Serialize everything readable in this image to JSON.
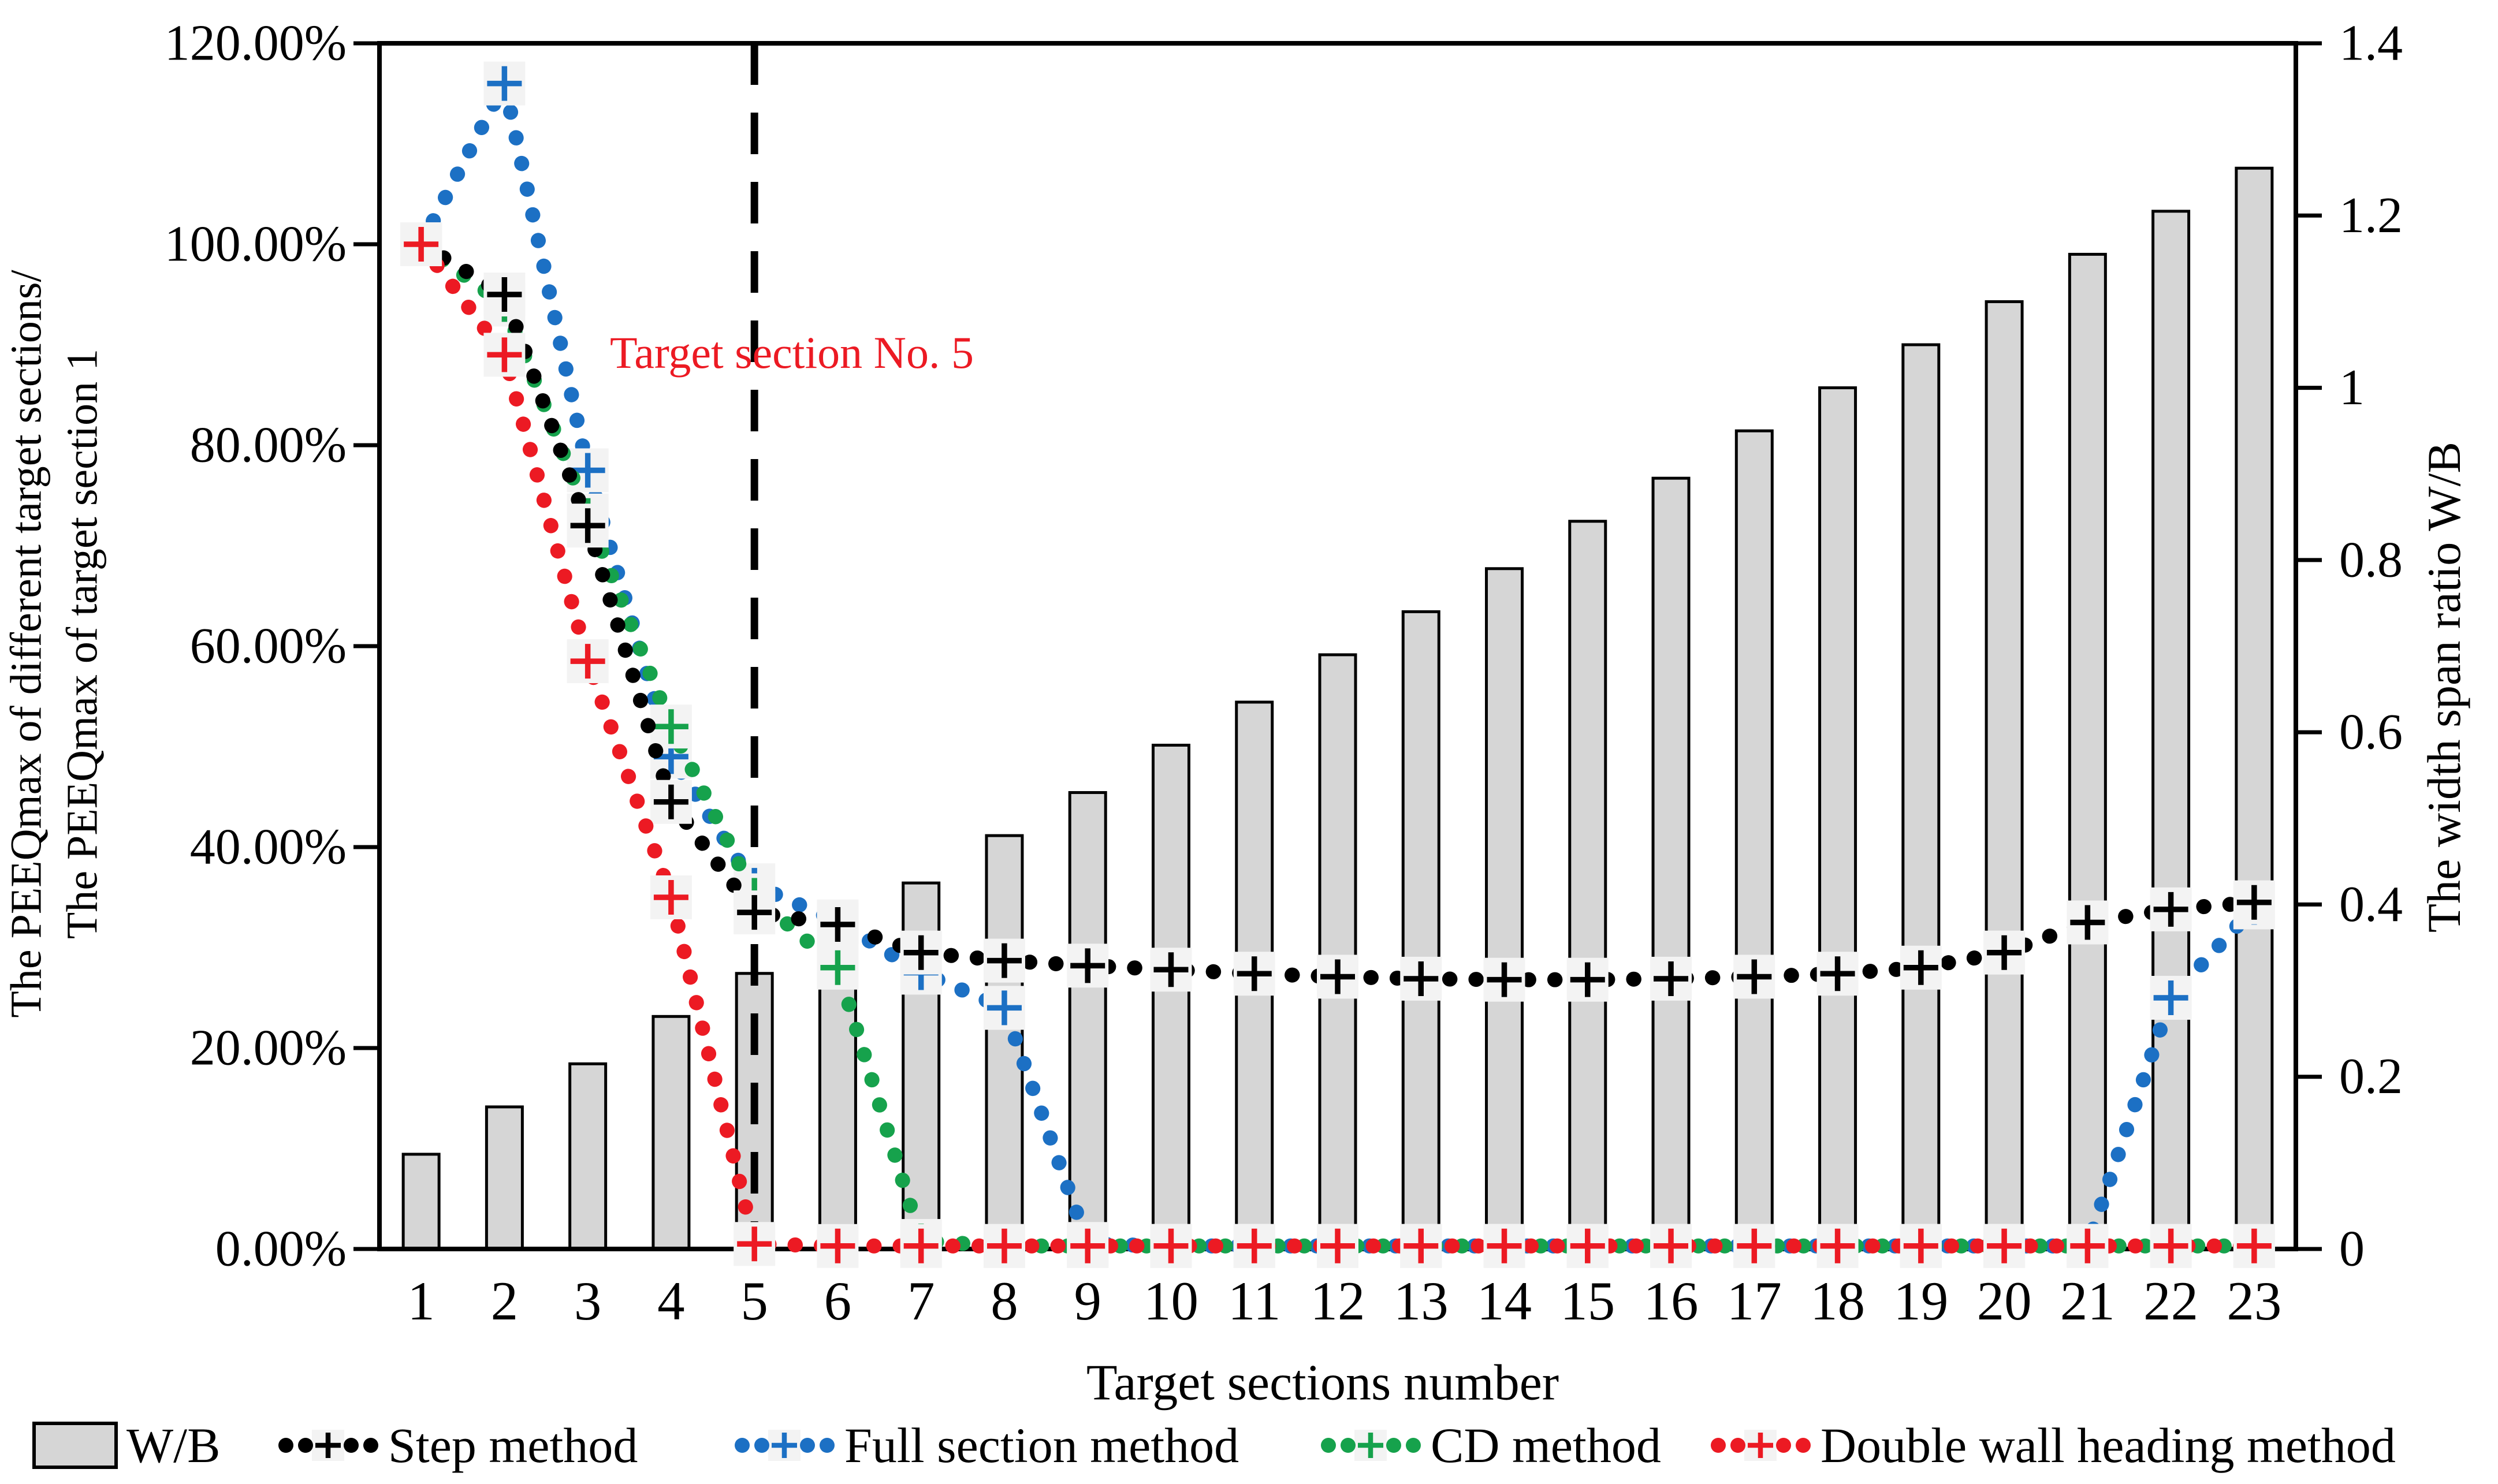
{
  "chart_data": {
    "type": "combo-bar-line",
    "categories": [
      "1",
      "2",
      "3",
      "4",
      "5",
      "6",
      "7",
      "8",
      "9",
      "10",
      "11",
      "12",
      "13",
      "14",
      "15",
      "16",
      "17",
      "18",
      "19",
      "20",
      "21",
      "22",
      "23"
    ],
    "x_axis": {
      "title": "Target sections number"
    },
    "left_axis": {
      "title_line1": "The PEEQmax of different target sections/",
      "title_line2": "The PEEQmax of target section 1",
      "tick_labels": [
        "120.00%",
        "100.00%",
        "80.00%",
        "60.00%",
        "40.00%",
        "20.00%",
        "0.00%"
      ],
      "min": 0,
      "max": 120,
      "unit": "percent",
      "grid": false
    },
    "right_axis": {
      "title": "The width span ratio W/B",
      "tick_labels": [
        "1.4",
        "1.2",
        "1",
        "0.8",
        "0.6",
        "0.4",
        "0.2",
        "0"
      ],
      "min": 0,
      "max": 1.4
    },
    "annotation": {
      "text": "Target section No. 5",
      "color": "#ec1a23",
      "at_category": "5"
    },
    "reference_line": {
      "style": "dashed",
      "color": "#000000",
      "at_category": "5"
    },
    "bars": {
      "name": "W/B",
      "color_fill": "#d6d6d6",
      "color_stroke": "#000000",
      "axis": "right",
      "values": [
        0.11,
        0.165,
        0.215,
        0.27,
        0.32,
        0.375,
        0.425,
        0.48,
        0.53,
        0.585,
        0.635,
        0.69,
        0.74,
        0.79,
        0.845,
        0.895,
        0.95,
        1.0,
        1.05,
        1.1,
        1.155,
        1.205,
        1.255
      ]
    },
    "series": [
      {
        "name": "Step method",
        "color": "#000000",
        "axis": "left",
        "marker": "plus",
        "line_style": "dotted",
        "values_percent": [
          100,
          95,
          72,
          44.5,
          33.5,
          32.3,
          29.5,
          28.7,
          28.2,
          27.8,
          27.4,
          27.1,
          26.9,
          26.8,
          26.8,
          26.9,
          27.1,
          27.4,
          28,
          29.5,
          32.5,
          33.8,
          34.5
        ]
      },
      {
        "name": "Full section method",
        "color": "#1c70c4",
        "axis": "left",
        "marker": "plus",
        "line_style": "dotted",
        "values_percent": [
          100,
          116,
          77.5,
          49,
          36.2,
          32.6,
          27.5,
          24,
          0.5,
          0.3,
          0.3,
          0.3,
          0.3,
          0.3,
          0.3,
          0.3,
          0.3,
          0.3,
          0.3,
          0.3,
          0.3,
          25,
          34
        ]
      },
      {
        "name": "CD method",
        "color": "#16a24c",
        "axis": "left",
        "marker": "plus",
        "line_style": "dotted",
        "values_percent": [
          100,
          94,
          73,
          52,
          35.2,
          28,
          0.8,
          0.3,
          0.3,
          0.3,
          0.3,
          0.3,
          0.3,
          0.3,
          0.3,
          0.3,
          0.3,
          0.3,
          0.3,
          0.3,
          0.3,
          0.3,
          0.3
        ]
      },
      {
        "name": "Double wall heading method",
        "color": "#ec1a23",
        "axis": "left",
        "marker": "plus",
        "line_style": "dotted",
        "values_percent": [
          100,
          89,
          58.5,
          35,
          0.5,
          0.3,
          0.3,
          0.3,
          0.3,
          0.3,
          0.3,
          0.3,
          0.3,
          0.3,
          0.3,
          0.3,
          0.3,
          0.3,
          0.3,
          0.3,
          0.3,
          0.3,
          0.3
        ]
      }
    ],
    "legend": {
      "position": "bottom"
    },
    "marker_halo_color": "#f3f3f3"
  }
}
